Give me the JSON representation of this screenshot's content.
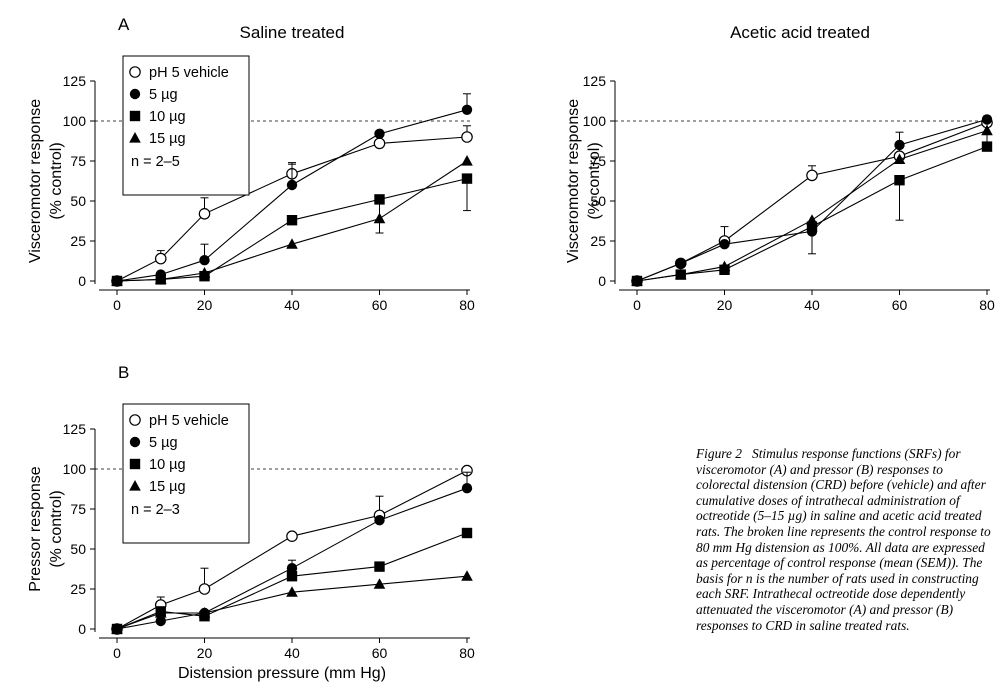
{
  "panels": {
    "A": {
      "label": "A"
    },
    "B": {
      "label": "B"
    }
  },
  "chart_data": [
    {
      "id": "A-saline",
      "type": "line",
      "title": "Saline treated",
      "xlabel": "",
      "ylabel_line1": "Visceromotor response",
      "ylabel_line2": "(% control)",
      "x_ticks": [
        0,
        20,
        40,
        60,
        80
      ],
      "y_ticks": [
        0,
        25,
        50,
        75,
        100,
        125
      ],
      "xlim": [
        0,
        80
      ],
      "ylim": [
        0,
        125
      ],
      "reference_line": 100,
      "legend": {
        "position": "top-left",
        "note": "n = 2–5"
      },
      "series": [
        {
          "name": "pH 5 vehicle",
          "marker": "open-circle",
          "x": [
            0,
            10,
            20,
            40,
            60,
            80
          ],
          "y": [
            0,
            14,
            42,
            67,
            86,
            90
          ],
          "err": [
            0,
            5,
            10,
            7,
            5,
            7
          ]
        },
        {
          "name": "5 µg",
          "marker": "filled-circle",
          "x": [
            0,
            10,
            20,
            40,
            60,
            80
          ],
          "y": [
            0,
            4,
            13,
            60,
            92,
            107
          ],
          "err": [
            0,
            0,
            10,
            13,
            0,
            10
          ]
        },
        {
          "name": "10 µg",
          "marker": "filled-square",
          "x": [
            0,
            10,
            20,
            40,
            60,
            80
          ],
          "y": [
            0,
            1,
            3,
            38,
            51,
            64
          ],
          "err": [
            0,
            0,
            0,
            0,
            21,
            20
          ]
        },
        {
          "name": "15 µg",
          "marker": "filled-triangle",
          "x": [
            0,
            10,
            20,
            40,
            60,
            80
          ],
          "y": [
            0,
            1,
            5,
            23,
            39,
            75
          ],
          "err": [
            0,
            0,
            0,
            0,
            0,
            0
          ]
        }
      ]
    },
    {
      "id": "A-acetic",
      "type": "line",
      "title": "Acetic acid treated",
      "xlabel": "",
      "ylabel_line1": "Visceromotor response",
      "ylabel_line2": "(% control)",
      "x_ticks": [
        0,
        20,
        40,
        60,
        80
      ],
      "y_ticks": [
        0,
        25,
        50,
        75,
        100,
        125
      ],
      "xlim": [
        0,
        80
      ],
      "ylim": [
        0,
        125
      ],
      "reference_line": 100,
      "series": [
        {
          "name": "pH 5 vehicle",
          "marker": "open-circle",
          "x": [
            0,
            10,
            20,
            40,
            60,
            80
          ],
          "y": [
            0,
            11,
            25,
            66,
            78,
            99
          ],
          "err": [
            0,
            0,
            9,
            6,
            15,
            0
          ]
        },
        {
          "name": "5 µg",
          "marker": "filled-circle",
          "x": [
            0,
            10,
            20,
            40,
            60,
            80
          ],
          "y": [
            0,
            11,
            23,
            31,
            85,
            101
          ],
          "err": [
            0,
            0,
            0,
            0,
            0,
            0
          ]
        },
        {
          "name": "10 µg",
          "marker": "filled-square",
          "x": [
            0,
            10,
            20,
            40,
            60,
            80
          ],
          "y": [
            0,
            4,
            7,
            34,
            63,
            84
          ],
          "err": [
            0,
            0,
            0,
            17,
            25,
            19
          ]
        },
        {
          "name": "15 µg",
          "marker": "filled-triangle",
          "x": [
            0,
            10,
            20,
            40,
            60,
            80
          ],
          "y": [
            0,
            4,
            9,
            38,
            76,
            94
          ],
          "err": [
            0,
            0,
            0,
            0,
            0,
            0
          ]
        }
      ]
    },
    {
      "id": "B-saline",
      "type": "line",
      "title": "",
      "xlabel": "Distension pressure (mm Hg)",
      "ylabel_line1": "Pressor response",
      "ylabel_line2": "(% control)",
      "x_ticks": [
        0,
        20,
        40,
        60,
        80
      ],
      "y_ticks": [
        0,
        25,
        50,
        75,
        100,
        125
      ],
      "xlim": [
        0,
        80
      ],
      "ylim": [
        0,
        125
      ],
      "reference_line": 100,
      "legend": {
        "position": "top-left",
        "note": "n = 2–3"
      },
      "series": [
        {
          "name": "pH 5 vehicle",
          "marker": "open-circle",
          "x": [
            0,
            10,
            20,
            40,
            60,
            80
          ],
          "y": [
            0,
            15,
            25,
            58,
            71,
            99
          ],
          "err": [
            0,
            5,
            13,
            0,
            12,
            0
          ]
        },
        {
          "name": "5 µg",
          "marker": "filled-circle",
          "x": [
            0,
            10,
            20,
            40,
            60,
            80
          ],
          "y": [
            0,
            5,
            10,
            38,
            68,
            88
          ],
          "err": [
            0,
            0,
            0,
            5,
            0,
            10
          ]
        },
        {
          "name": "10 µg",
          "marker": "filled-square",
          "x": [
            0,
            10,
            20,
            40,
            60,
            80
          ],
          "y": [
            0,
            11,
            8,
            33,
            39,
            60
          ],
          "err": [
            0,
            0,
            0,
            0,
            0,
            0
          ]
        },
        {
          "name": "15 µg",
          "marker": "filled-triangle",
          "x": [
            0,
            10,
            20,
            40,
            60,
            80
          ],
          "y": [
            0,
            10,
            10,
            23,
            28,
            33
          ],
          "err": [
            0,
            0,
            0,
            0,
            0,
            0
          ]
        }
      ]
    }
  ],
  "caption": {
    "label": "Figure 2",
    "text": "Stimulus response functions (SRFs) for visceromotor (A) and pressor (B) responses to colorectal distension (CRD) before (vehicle) and after cumulative doses of intrathecal administration of octreotide (5–15 µg) in saline and acetic acid treated rats. The broken line represents the control response to 80 mm Hg distension as 100%. All data are expressed as percentage of control response (mean (SEM)). The basis for n is the number of rats used in constructing each SRF. Intrathecal octreotide dose dependently attenuated the visceromotor (A) and pressor (B) responses to CRD in saline treated rats."
  }
}
